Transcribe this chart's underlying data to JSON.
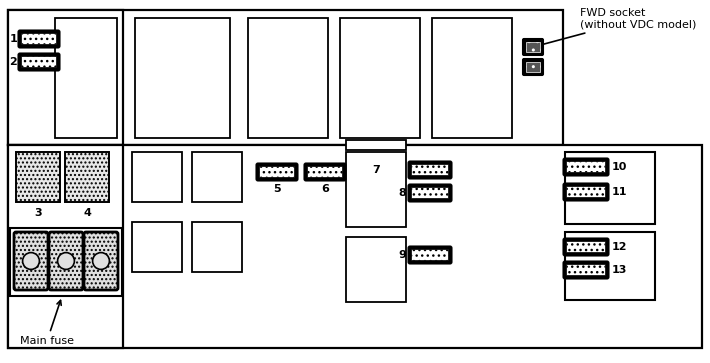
{
  "bg_color": "#ffffff",
  "annotation_fwd": "FWD socket\n(without VDC model)",
  "annotation_main": "Main fuse",
  "black": "#000000",
  "white": "#ffffff",
  "gray_light": "#dddddd",
  "gray_med": "#aaaaaa"
}
